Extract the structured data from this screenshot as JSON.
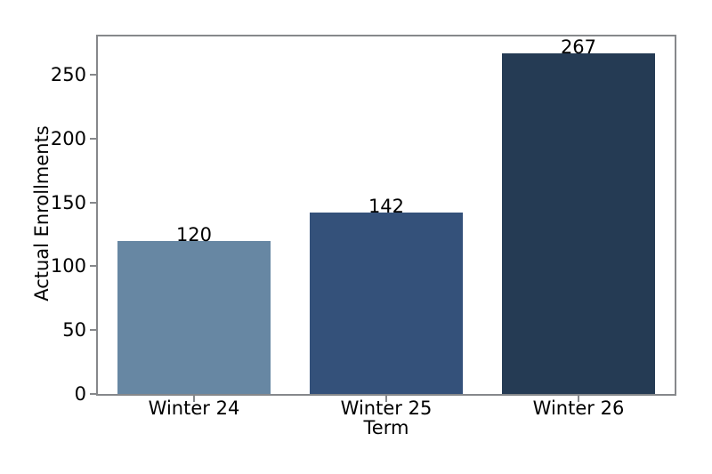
{
  "chart_data": {
    "type": "bar",
    "categories": [
      "Winter 24",
      "Winter 25",
      "Winter 26"
    ],
    "values": [
      120,
      142,
      267
    ],
    "bar_labels": [
      "120",
      "142",
      "267"
    ],
    "bar_colors": [
      "#6787A3",
      "#34517A",
      "#253B54"
    ],
    "title": "",
    "xlabel": "Term",
    "ylabel": "Actual Enrollments",
    "yticks": [
      0,
      50,
      100,
      150,
      200,
      250
    ],
    "ylim": [
      0,
      280
    ],
    "grid": false,
    "legend": null
  },
  "colors": {
    "spine": "#86888b",
    "text": "#000000",
    "background": "#ffffff"
  }
}
